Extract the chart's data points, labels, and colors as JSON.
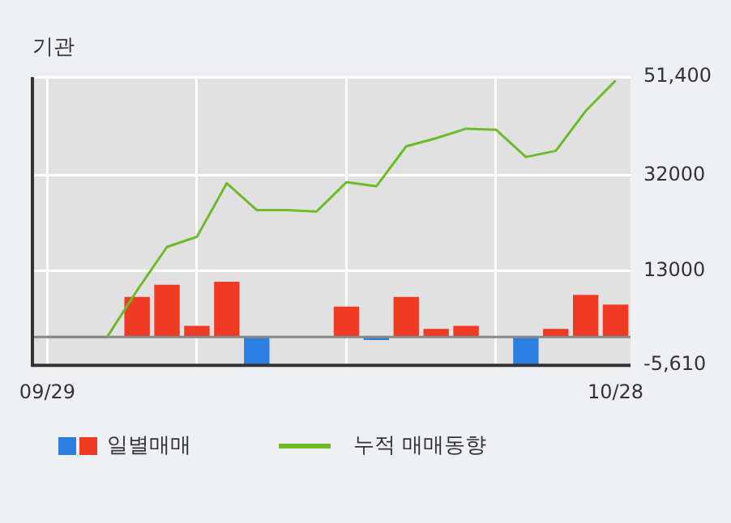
{
  "chart_data": {
    "type": "bar",
    "title": "기관",
    "categories": [
      "09/29",
      null,
      null,
      null,
      null,
      null,
      null,
      null,
      null,
      null,
      null,
      null,
      null,
      null,
      null,
      null,
      null,
      null,
      null,
      "10/28"
    ],
    "series": [
      {
        "name": "일별매매",
        "colors": [
          "#ef3b24",
          "#ef3b24",
          "#ef3b24",
          "#ef3b24",
          "#ef3b24",
          "#ef3b24",
          "#ef3b24",
          "#2b7fe3",
          "#ef3b24",
          "#ef3b24",
          "#ef3b24",
          "#2b7fe3",
          "#ef3b24",
          "#ef3b24",
          "#ef3b24",
          "#ef3b24",
          "#2b7fe3",
          "#ef3b24",
          "#ef3b24",
          "#ef3b24"
        ],
        "values": [
          0,
          0,
          0,
          7900,
          10300,
          2200,
          10900,
          -5400,
          0,
          0,
          6000,
          -600,
          7900,
          1600,
          2200,
          0,
          -5400,
          1600,
          8300,
          6400
        ]
      },
      {
        "name": "누적 매매동향",
        "type": "line",
        "color": "#6cbb2a",
        "values": [
          0,
          0,
          0,
          9200,
          17800,
          19800,
          30400,
          25100,
          25100,
          24800,
          30600,
          29800,
          37700,
          39300,
          41200,
          41000,
          35600,
          36800,
          44700,
          50700
        ]
      }
    ],
    "ylim": [
      -5610,
      51400
    ],
    "yticks": [
      {
        "value": -5610,
        "label": "-5,610"
      },
      13000,
      32000,
      {
        "value": 51400,
        "label": "51,400"
      }
    ],
    "grid": true,
    "legend": "bottom",
    "marker": "none",
    "line_style": "solid"
  }
}
